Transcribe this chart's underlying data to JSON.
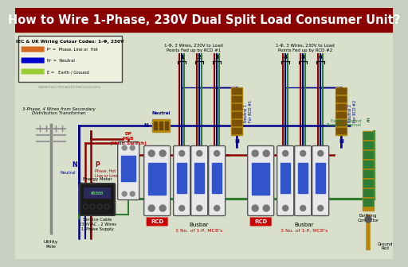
{
  "title": "How to Wire 1-Phase, 230V Dual Split Load Consumer Unit?",
  "title_bg": "#8B0000",
  "title_color": "white",
  "title_fontsize": 10.5,
  "bg_color": "#c8cfc0",
  "wire_phase": "#8B0000",
  "wire_neutral": "#00008B",
  "wire_earth": "#2E7D32",
  "legend_title": "IEC & UK Wiring Colour Codes: 1-Φ, 230V",
  "website": "WWW.ELECTRICALTECHNOLOGY.ORG",
  "labels": {
    "utility_pole": "Utility\nPole",
    "neutral_lbl": "N\nNeutral",
    "phase_lbl": "P\nPhase, Hot\nLive or Line",
    "energy_meter": "Energy Meter",
    "service_cable": "Service Cable\n230V AC , 2 Wires\n1-Phase Supply",
    "three_phase": "3-Phase, 4 Wires from Secondary\nDistribution Transformer.",
    "dp_mcb": "DP\nMCB\n(Main Switch)",
    "neutral_label": "Neutral",
    "rcd_label1": "RCD",
    "rcd_label2": "RCD",
    "busbar1": "Busbar",
    "busbar2": "Busbar",
    "mcbs1": "3 No. of 1-P, MCB's",
    "mcbs2": "3 No. of 1-P, MCB's",
    "rcd1_header": "1-Φ, 3 Wires, 230V to Load\nPoints Fed up by RCD #1",
    "rcd2_header": "1-Φ, 3 Wires, 230V to Load\nPoints Fed up by RCD #2",
    "neutral1": "Neutral 1\nFor RCD #1",
    "neutral2": "Neutral 2\nFor RCD #2",
    "earth_busbar": "Earth / Ground\nBusbar Terminal",
    "earthing": "Earthing\nConductor",
    "ground_rod": "Ground\nRod",
    "n_label": "N"
  }
}
